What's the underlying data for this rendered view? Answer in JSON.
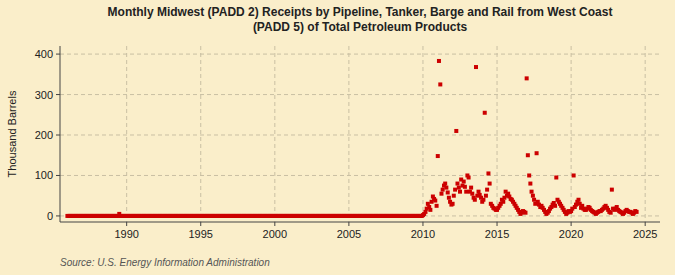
{
  "chart_data": {
    "type": "scatter",
    "title": "Monthly Midwest (PADD 2) Receipts by Pipeline, Tanker, Barge and Rail from West Coast\n(PADD 5) of Total Petroleum Products",
    "y_label": "Thousand Barrels",
    "annotations": [
      "Source: U.S. Energy Information Administration"
    ],
    "color": "#cc0000",
    "marker": "square",
    "grid": true,
    "xlim": [
      1985.5,
      2026
    ],
    "ylim": [
      -15,
      420
    ],
    "xticks": [
      1990,
      1995,
      2000,
      2005,
      2010,
      2015,
      2020,
      2025
    ],
    "yticks": [
      0,
      100,
      200,
      300,
      400
    ],
    "x": [
      1986.0,
      1986.08,
      1986.17,
      1986.25,
      1986.33,
      1986.42,
      1986.5,
      1986.58,
      1986.67,
      1986.75,
      1986.83,
      1986.92,
      1987.0,
      1987.08,
      1987.17,
      1987.25,
      1987.33,
      1987.42,
      1987.5,
      1987.58,
      1987.67,
      1987.75,
      1987.83,
      1987.92,
      1988.0,
      1988.08,
      1988.17,
      1988.25,
      1988.33,
      1988.42,
      1988.5,
      1988.58,
      1988.67,
      1988.75,
      1988.83,
      1988.92,
      1989.0,
      1989.08,
      1989.17,
      1989.25,
      1989.33,
      1989.42,
      1989.5,
      1989.58,
      1989.67,
      1989.75,
      1989.83,
      1989.92,
      1990.0,
      1990.08,
      1990.17,
      1990.25,
      1990.33,
      1990.42,
      1990.5,
      1990.58,
      1990.67,
      1990.75,
      1990.83,
      1990.92,
      1991.0,
      1991.08,
      1991.17,
      1991.25,
      1991.33,
      1991.42,
      1991.5,
      1991.58,
      1991.67,
      1991.75,
      1991.83,
      1991.92,
      1992.0,
      1992.08,
      1992.17,
      1992.25,
      1992.33,
      1992.42,
      1992.5,
      1992.58,
      1992.67,
      1992.75,
      1992.83,
      1992.92,
      1993.0,
      1993.08,
      1993.17,
      1993.25,
      1993.33,
      1993.42,
      1993.5,
      1993.58,
      1993.67,
      1993.75,
      1993.83,
      1993.92,
      1994.0,
      1994.08,
      1994.17,
      1994.25,
      1994.33,
      1994.42,
      1994.5,
      1994.58,
      1994.67,
      1994.75,
      1994.83,
      1994.92,
      1995.0,
      1995.08,
      1995.17,
      1995.25,
      1995.33,
      1995.42,
      1995.5,
      1995.58,
      1995.67,
      1995.75,
      1995.83,
      1995.92,
      1996.0,
      1996.08,
      1996.17,
      1996.25,
      1996.33,
      1996.42,
      1996.5,
      1996.58,
      1996.67,
      1996.75,
      1996.83,
      1996.92,
      1997.0,
      1997.08,
      1997.17,
      1997.25,
      1997.33,
      1997.42,
      1997.5,
      1997.58,
      1997.67,
      1997.75,
      1997.83,
      1997.92,
      1998.0,
      1998.08,
      1998.17,
      1998.25,
      1998.33,
      1998.42,
      1998.5,
      1998.58,
      1998.67,
      1998.75,
      1998.83,
      1998.92,
      1999.0,
      1999.08,
      1999.17,
      1999.25,
      1999.33,
      1999.42,
      1999.5,
      1999.58,
      1999.67,
      1999.75,
      1999.83,
      1999.92,
      2000.0,
      2000.08,
      2000.17,
      2000.25,
      2000.33,
      2000.42,
      2000.5,
      2000.58,
      2000.67,
      2000.75,
      2000.83,
      2000.92,
      2001.0,
      2001.08,
      2001.17,
      2001.25,
      2001.33,
      2001.42,
      2001.5,
      2001.58,
      2001.67,
      2001.75,
      2001.83,
      2001.92,
      2002.0,
      2002.08,
      2002.17,
      2002.25,
      2002.33,
      2002.42,
      2002.5,
      2002.58,
      2002.67,
      2002.75,
      2002.83,
      2002.92,
      2003.0,
      2003.08,
      2003.17,
      2003.25,
      2003.33,
      2003.42,
      2003.5,
      2003.58,
      2003.67,
      2003.75,
      2003.83,
      2003.92,
      2004.0,
      2004.08,
      2004.17,
      2004.25,
      2004.33,
      2004.42,
      2004.5,
      2004.58,
      2004.67,
      2004.75,
      2004.83,
      2004.92,
      2005.0,
      2005.08,
      2005.17,
      2005.25,
      2005.33,
      2005.42,
      2005.5,
      2005.58,
      2005.67,
      2005.75,
      2005.83,
      2005.92,
      2006.0,
      2006.08,
      2006.17,
      2006.25,
      2006.33,
      2006.42,
      2006.5,
      2006.58,
      2006.67,
      2006.75,
      2006.83,
      2006.92,
      2007.0,
      2007.08,
      2007.17,
      2007.25,
      2007.33,
      2007.42,
      2007.5,
      2007.58,
      2007.67,
      2007.75,
      2007.83,
      2007.92,
      2008.0,
      2008.08,
      2008.17,
      2008.25,
      2008.33,
      2008.42,
      2008.5,
      2008.58,
      2008.67,
      2008.75,
      2008.83,
      2008.92,
      2009.0,
      2009.08,
      2009.17,
      2009.25,
      2009.33,
      2009.42,
      2009.5,
      2009.58,
      2009.67,
      2009.75,
      2009.83,
      2009.92,
      2010.0,
      2010.08,
      2010.17,
      2010.25,
      2010.33,
      2010.42,
      2010.5,
      2010.58,
      2010.67,
      2010.75,
      2010.83,
      2010.92,
      2011.0,
      2011.08,
      2011.17,
      2011.25,
      2011.33,
      2011.42,
      2011.5,
      2011.58,
      2011.67,
      2011.75,
      2011.83,
      2011.92,
      2012.0,
      2012.08,
      2012.17,
      2012.25,
      2012.33,
      2012.42,
      2012.5,
      2012.58,
      2012.67,
      2012.75,
      2012.83,
      2012.92,
      2013.0,
      2013.08,
      2013.17,
      2013.25,
      2013.33,
      2013.42,
      2013.5,
      2013.58,
      2013.67,
      2013.75,
      2013.83,
      2013.92,
      2014.0,
      2014.08,
      2014.17,
      2014.25,
      2014.33,
      2014.42,
      2014.5,
      2014.58,
      2014.67,
      2014.75,
      2014.83,
      2014.92,
      2015.0,
      2015.08,
      2015.17,
      2015.25,
      2015.33,
      2015.42,
      2015.5,
      2015.58,
      2015.67,
      2015.75,
      2015.83,
      2015.92,
      2016.0,
      2016.08,
      2016.17,
      2016.25,
      2016.33,
      2016.42,
      2016.5,
      2016.58,
      2016.67,
      2016.75,
      2016.83,
      2016.92,
      2017.0,
      2017.08,
      2017.17,
      2017.25,
      2017.33,
      2017.42,
      2017.5,
      2017.58,
      2017.67,
      2017.75,
      2017.83,
      2017.92,
      2018.0,
      2018.08,
      2018.17,
      2018.25,
      2018.33,
      2018.42,
      2018.5,
      2018.58,
      2018.67,
      2018.75,
      2018.83,
      2018.92,
      2019.0,
      2019.08,
      2019.17,
      2019.25,
      2019.33,
      2019.42,
      2019.5,
      2019.58,
      2019.67,
      2019.75,
      2019.83,
      2019.92,
      2020.0,
      2020.08,
      2020.17,
      2020.25,
      2020.33,
      2020.42,
      2020.5,
      2020.58,
      2020.67,
      2020.75,
      2020.83,
      2020.92,
      2021.0,
      2021.08,
      2021.17,
      2021.25,
      2021.33,
      2021.42,
      2021.5,
      2021.58,
      2021.67,
      2021.75,
      2021.83,
      2021.92,
      2022.0,
      2022.08,
      2022.17,
      2022.25,
      2022.33,
      2022.42,
      2022.5,
      2022.58,
      2022.67,
      2022.75,
      2022.83,
      2022.92,
      2023.0,
      2023.08,
      2023.17,
      2023.25,
      2023.33,
      2023.42,
      2023.5,
      2023.58,
      2023.67,
      2023.75,
      2023.83,
      2023.92,
      2024.0,
      2024.08,
      2024.17,
      2024.25,
      2024.33,
      2024.42
    ],
    "values": [
      0,
      0,
      0,
      0,
      0,
      0,
      0,
      0,
      0,
      0,
      0,
      0,
      0,
      0,
      0,
      0,
      0,
      0,
      0,
      0,
      0,
      0,
      0,
      0,
      0,
      0,
      0,
      0,
      0,
      0,
      0,
      0,
      0,
      0,
      0,
      0,
      0,
      0,
      0,
      0,
      0,
      0,
      5,
      0,
      0,
      0,
      0,
      0,
      0,
      0,
      0,
      0,
      0,
      0,
      0,
      0,
      0,
      0,
      0,
      0,
      0,
      0,
      0,
      0,
      0,
      0,
      0,
      0,
      0,
      0,
      0,
      0,
      0,
      0,
      0,
      0,
      0,
      0,
      0,
      0,
      0,
      0,
      0,
      0,
      0,
      0,
      0,
      0,
      0,
      0,
      0,
      0,
      0,
      0,
      0,
      0,
      0,
      0,
      0,
      0,
      0,
      0,
      0,
      0,
      0,
      0,
      0,
      0,
      0,
      0,
      0,
      0,
      0,
      0,
      0,
      0,
      0,
      0,
      0,
      0,
      0,
      0,
      0,
      0,
      0,
      0,
      0,
      0,
      0,
      0,
      0,
      0,
      0,
      0,
      0,
      0,
      0,
      0,
      0,
      0,
      0,
      0,
      0,
      0,
      0,
      0,
      0,
      0,
      0,
      0,
      0,
      0,
      0,
      0,
      0,
      0,
      0,
      0,
      0,
      0,
      0,
      0,
      0,
      0,
      0,
      0,
      0,
      0,
      0,
      0,
      0,
      0,
      0,
      0,
      0,
      0,
      0,
      0,
      0,
      0,
      0,
      0,
      0,
      0,
      0,
      0,
      0,
      0,
      0,
      0,
      0,
      0,
      0,
      0,
      0,
      0,
      0,
      0,
      0,
      0,
      0,
      0,
      0,
      0,
      0,
      0,
      0,
      0,
      0,
      0,
      0,
      0,
      0,
      0,
      0,
      0,
      0,
      0,
      0,
      0,
      0,
      0,
      0,
      0,
      0,
      0,
      0,
      0,
      0,
      0,
      0,
      0,
      0,
      0,
      0,
      0,
      0,
      0,
      0,
      0,
      0,
      0,
      0,
      0,
      0,
      0,
      0,
      0,
      0,
      0,
      0,
      0,
      0,
      0,
      0,
      0,
      0,
      0,
      0,
      0,
      0,
      0,
      0,
      0,
      0,
      0,
      0,
      0,
      0,
      0,
      0,
      0,
      0,
      0,
      0,
      0,
      0,
      0,
      0,
      0,
      0,
      0,
      0,
      0,
      0,
      0,
      0,
      0,
      2,
      5,
      10,
      18,
      30,
      22,
      15,
      35,
      48,
      42,
      38,
      25,
      148,
      383,
      325,
      55,
      65,
      75,
      80,
      70,
      58,
      45,
      35,
      28,
      30,
      50,
      65,
      210,
      80,
      70,
      60,
      90,
      75,
      85,
      72,
      60,
      100,
      95,
      60,
      70,
      55,
      45,
      40,
      368,
      50,
      60,
      52,
      45,
      35,
      40,
      255,
      50,
      65,
      105,
      80,
      30,
      25,
      20,
      18,
      15,
      15,
      20,
      25,
      30,
      40,
      35,
      45,
      60,
      50,
      55,
      48,
      42,
      40,
      35,
      30,
      25,
      20,
      15,
      10,
      5,
      8,
      12,
      10,
      8,
      340,
      150,
      100,
      80,
      60,
      50,
      40,
      30,
      155,
      35,
      28,
      22,
      25,
      20,
      15,
      10,
      5,
      8,
      12,
      18,
      22,
      28,
      32,
      25,
      95,
      40,
      35,
      30,
      25,
      20,
      15,
      10,
      5,
      8,
      12,
      10,
      12,
      18,
      100,
      22,
      28,
      35,
      40,
      30,
      20,
      25,
      18,
      15,
      15,
      18,
      22,
      20,
      15,
      12,
      10,
      8,
      5,
      8,
      10,
      12,
      12,
      15,
      18,
      22,
      25,
      20,
      15,
      10,
      8,
      65,
      18,
      15,
      18,
      22,
      15,
      12,
      10,
      8,
      5,
      8,
      12,
      15,
      12,
      10,
      10,
      8,
      5,
      8,
      12,
      10
    ]
  }
}
